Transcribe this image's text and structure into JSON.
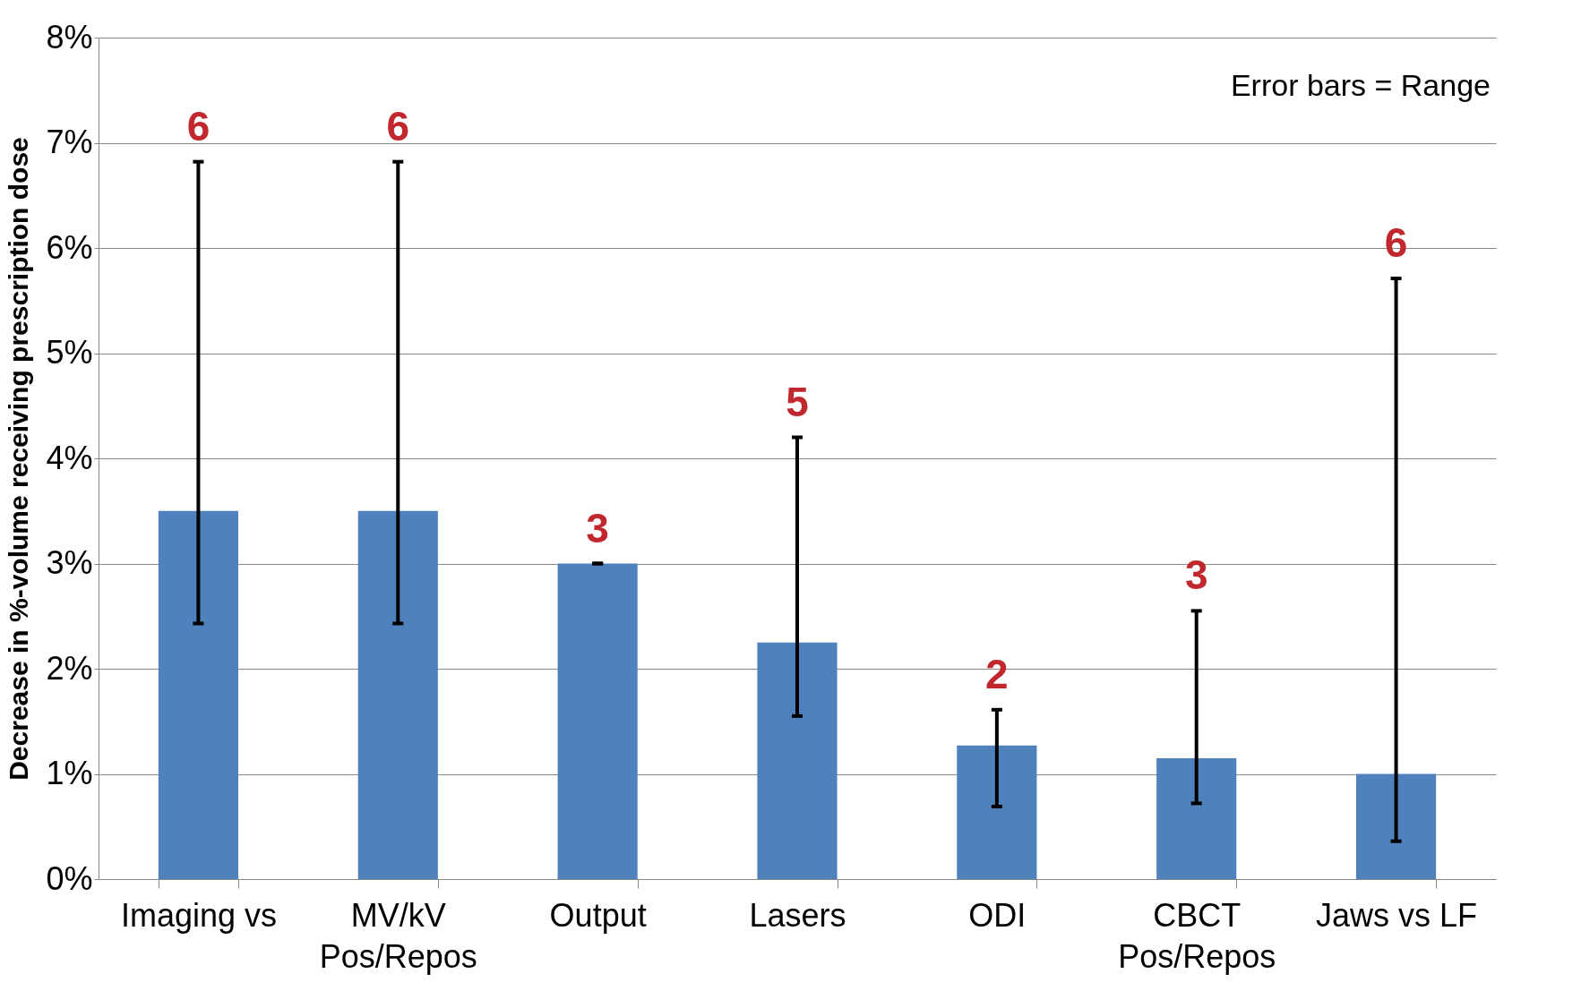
{
  "chart_data": {
    "type": "bar",
    "ylabel": "Decrease in %-volume receiving prescription dose",
    "categories": [
      "Imaging vs",
      "MV/kV\nPos/Repos",
      "Output",
      "Lasers",
      "ODI",
      "CBCT\nPos/Repos",
      "Jaws vs LF"
    ],
    "values": [
      3.5,
      3.5,
      3.0,
      2.25,
      1.27,
      1.15,
      1.0
    ],
    "errors": [
      [
        2.43,
        6.82
      ],
      [
        2.43,
        6.82
      ],
      [
        3.0,
        3.0
      ],
      [
        1.55,
        4.2
      ],
      [
        0.69,
        1.61
      ],
      [
        0.72,
        2.55
      ],
      [
        0.36,
        5.71
      ]
    ],
    "color": "#4f81bd",
    "ylim": [
      0,
      8
    ],
    "yticks": [
      {
        "value": 0,
        "label": "0%"
      },
      {
        "value": 1,
        "label": "1%"
      },
      {
        "value": 2,
        "label": "2%"
      },
      {
        "value": 3,
        "label": "3%"
      },
      {
        "value": 4,
        "label": "4%"
      },
      {
        "value": 5,
        "label": "5%"
      },
      {
        "value": 6,
        "label": "6%"
      },
      {
        "value": 7,
        "label": "7%"
      },
      {
        "value": 8,
        "label": "8%"
      }
    ],
    "grid": "y",
    "annotations": [
      "6",
      "6",
      "3",
      "5",
      "2",
      "3",
      "6",
      "Error bars = Range"
    ]
  }
}
